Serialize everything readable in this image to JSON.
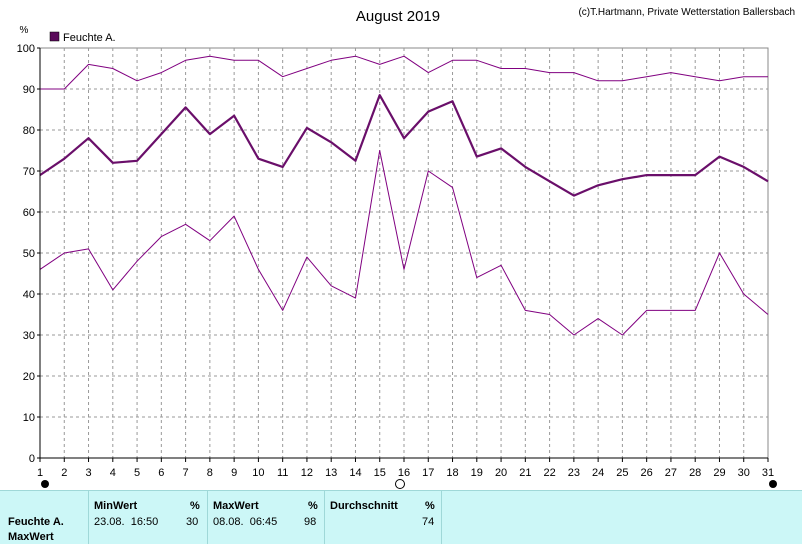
{
  "chart_data": {
    "type": "line",
    "title": "August 2019",
    "credit": "(c)T.Hartmann, Private Wetterstation Ballersbach",
    "ylabel": "%",
    "ylim": [
      0,
      100
    ],
    "yticks": [
      "0",
      "10",
      "20",
      "30",
      "40",
      "50",
      "60",
      "70",
      "80",
      "90",
      "100"
    ],
    "x": [
      "1",
      "2",
      "3",
      "4",
      "5",
      "6",
      "7",
      "8",
      "9",
      "10",
      "11",
      "12",
      "13",
      "14",
      "15",
      "16",
      "17",
      "18",
      "19",
      "20",
      "21",
      "22",
      "23",
      "24",
      "25",
      "26",
      "27",
      "28",
      "29",
      "30",
      "31"
    ],
    "legend": "Feuchte A.",
    "legend_position": "top-left",
    "grid": true,
    "colors": {
      "series": "#6a0f6a",
      "band": "#800080",
      "legend": "#5a0a5a"
    },
    "series": [
      {
        "role": "max",
        "values": [
          90,
          90,
          96,
          95,
          92,
          94,
          97,
          98,
          97,
          97,
          93,
          95,
          97,
          98,
          96,
          98,
          94,
          97,
          97,
          95,
          95,
          94,
          94,
          92,
          92,
          93,
          94,
          93,
          92,
          93,
          93
        ]
      },
      {
        "role": "mean",
        "values": [
          69,
          73,
          78,
          72,
          72.5,
          79,
          85.5,
          79,
          83.5,
          73,
          71,
          80.5,
          77,
          72.5,
          88.5,
          78,
          84.5,
          87,
          73.5,
          75.5,
          71,
          67.5,
          64,
          66.5,
          68,
          69,
          69,
          69,
          73.5,
          71,
          67.5
        ]
      },
      {
        "role": "min",
        "values": [
          46,
          50,
          51,
          41,
          48,
          54,
          57,
          53,
          59,
          46,
          36,
          49,
          42,
          39,
          75,
          46,
          70,
          66,
          44,
          47,
          36,
          35,
          30,
          34,
          30,
          36,
          36,
          36,
          50,
          40,
          35
        ]
      }
    ]
  },
  "markers": {
    "filled_days": [
      "1",
      "31"
    ],
    "open_day": "16"
  },
  "footer": {
    "row_label": "Feuchte A.",
    "row_label_2": "MaxWert",
    "min_header": "MinWert",
    "min_unit": "%",
    "min_time": "23.08.  16:50",
    "min_value": "30",
    "max_header": "MaxWert",
    "max_unit": "%",
    "max_time": "08.08.  06:45",
    "max_value": "98",
    "avg_header": "Durchschnitt",
    "avg_unit": "%",
    "avg_value": "74"
  }
}
